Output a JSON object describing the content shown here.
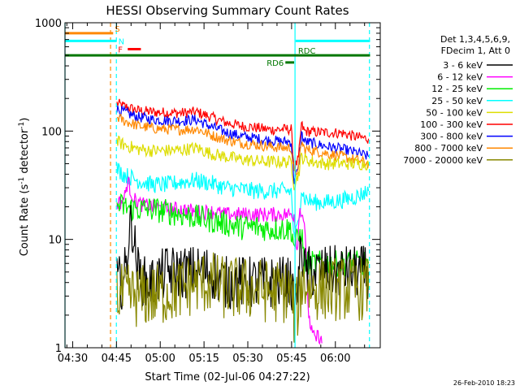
{
  "chart_data": {
    "type": "line",
    "title": "HESSI Observing Summary Count Rates",
    "xlabel": "Start Time (02-Jul-06 04:27:22)",
    "ylabel_main": "Count Rate (s",
    "ylabel_sup1": "-1",
    "ylabel_mid": " detector",
    "ylabel_sup2": "-1",
    "ylabel_end": ")",
    "x_scale": "time",
    "x_range_min": [
      0,
      108
    ],
    "x_ticks": [
      {
        "label": "04:30",
        "t": 2.63
      },
      {
        "label": "04:45",
        "t": 17.63
      },
      {
        "label": "05:00",
        "t": 32.63
      },
      {
        "label": "05:15",
        "t": 47.63
      },
      {
        "label": "05:30",
        "t": 62.63
      },
      {
        "label": "05:45",
        "t": 77.63
      },
      {
        "label": "06:00",
        "t": 92.63
      }
    ],
    "y_scale": "log",
    "ylim": [
      1,
      1000
    ],
    "y_ticks": [
      {
        "label": "1",
        "v": 1
      },
      {
        "label": "10",
        "v": 10
      },
      {
        "label": "100",
        "v": 100
      },
      {
        "label": "1000",
        "v": 1000
      }
    ],
    "legend": {
      "placement": "right",
      "header": [
        "Det 1,3,4,5,6,9,",
        "FDecim 1, Att 0"
      ],
      "entries": [
        {
          "label": "3 - 6 keV",
          "color": "#000000"
        },
        {
          "label": "6 - 12 keV",
          "color": "#ff00ff"
        },
        {
          "label": "12 - 25 keV",
          "color": "#00ee00"
        },
        {
          "label": "25 - 50 keV",
          "color": "#00ffff"
        },
        {
          "label": "50 - 100 keV",
          "color": "#dddd00"
        },
        {
          "label": "100 - 300 keV",
          "color": "#ff0000"
        },
        {
          "label": "300 - 800 keV",
          "color": "#0000ff"
        },
        {
          "label": "800 - 7000 keV",
          "color": "#ff8800"
        },
        {
          "label": "7000 - 20000 keV",
          "color": "#888800"
        }
      ]
    },
    "flags": [
      {
        "label": "S",
        "color": "#ff8800",
        "level": 800,
        "start": 0,
        "end": 16.5,
        "style": "solid"
      },
      {
        "label": "N",
        "color": "#00ffff",
        "level": 680,
        "start": 0,
        "end": 17.7,
        "style": "solid"
      },
      {
        "label": "F",
        "color": "#ff0000",
        "level": 570,
        "start": 21.5,
        "end": 26,
        "style": "solid"
      },
      {
        "label": "RD6",
        "color": "#007700",
        "level": 430,
        "start": 75.5,
        "end": 78.5,
        "style": "solid"
      },
      {
        "label": "RDC",
        "color": "#007700",
        "level": 500,
        "start": 0,
        "end": 104.5,
        "style": "solid"
      },
      {
        "label": "",
        "color": "#00ffff",
        "level": 680,
        "start": 79,
        "end": 104.5,
        "style": "solid"
      }
    ],
    "markers": [
      {
        "t": 15.6,
        "color": "#ff8800",
        "style": "dash"
      },
      {
        "t": 17.6,
        "color": "#00ffff",
        "style": "dash"
      },
      {
        "t": 78.8,
        "color": "#00ffff",
        "style": "solid"
      },
      {
        "t": 104.3,
        "color": "#00ffff",
        "style": "dash"
      },
      {
        "t": 0,
        "color": "#00ffff",
        "style": "solid"
      }
    ],
    "series": [
      {
        "name": "100 - 300 keV",
        "color": "#ff0000",
        "x": [
          17.8,
          20,
          25,
          30,
          35,
          40,
          45,
          50,
          55,
          60,
          65,
          70,
          75,
          77.5,
          78.5,
          80,
          81,
          82,
          85,
          90,
          95,
          100,
          104
        ],
        "y": [
          180,
          170,
          155,
          150,
          148,
          147,
          150,
          135,
          120,
          112,
          108,
          103,
          104,
          104,
          45,
          55,
          115,
          100,
          98,
          97,
          96,
          88,
          85
        ]
      },
      {
        "name": "300 - 800 keV",
        "color": "#0000ff",
        "x": [
          17.8,
          20,
          25,
          30,
          35,
          40,
          45,
          50,
          55,
          60,
          65,
          70,
          75,
          77.5,
          78.5,
          80,
          81,
          82,
          85,
          90,
          95,
          100,
          104
        ],
        "y": [
          160,
          150,
          135,
          128,
          125,
          125,
          127,
          110,
          98,
          90,
          86,
          82,
          80,
          80,
          35,
          45,
          95,
          80,
          77,
          72,
          68,
          63,
          58
        ]
      },
      {
        "name": "800 - 7000 keV",
        "color": "#ff8800",
        "x": [
          17.8,
          20,
          25,
          30,
          35,
          40,
          45,
          50,
          55,
          60,
          65,
          70,
          75,
          77.5,
          78.5,
          80,
          81,
          82,
          85,
          90,
          95,
          100,
          104
        ],
        "y": [
          135,
          125,
          112,
          106,
          104,
          103,
          105,
          92,
          83,
          78,
          75,
          72,
          70,
          70,
          40,
          45,
          80,
          68,
          66,
          62,
          58,
          54,
          50
        ]
      },
      {
        "name": "50 - 100 keV",
        "color": "#dddd00",
        "x": [
          17.8,
          20,
          25,
          30,
          35,
          40,
          45,
          50,
          55,
          60,
          65,
          70,
          75,
          77.5,
          78.5,
          80,
          81,
          82,
          85,
          90,
          95,
          100,
          104
        ],
        "y": [
          80,
          75,
          68,
          66,
          66,
          67,
          70,
          62,
          58,
          55,
          53,
          52,
          52,
          52,
          32,
          40,
          58,
          55,
          52,
          50,
          50,
          50,
          50
        ]
      },
      {
        "name": "25 - 50 keV",
        "color": "#00ffff",
        "x": [
          17.8,
          20,
          25,
          30,
          35,
          40,
          45,
          50,
          55,
          60,
          65,
          70,
          75,
          77.5,
          78.5,
          80,
          81,
          82,
          85,
          90,
          95,
          100,
          104
        ],
        "y": [
          45,
          40,
          35,
          32,
          32,
          34,
          35,
          33,
          30,
          29,
          28,
          28,
          28,
          28,
          10,
          14,
          30,
          24,
          22,
          22,
          23,
          25,
          28
        ]
      },
      {
        "name": "6 - 12 keV",
        "color": "#ff00ff",
        "x": [
          17.8,
          19,
          20.5,
          21.5,
          22.5,
          24,
          26,
          30,
          35,
          40,
          45,
          50,
          55,
          60,
          65,
          70,
          75,
          77.5,
          78.5,
          79.5,
          80.5,
          82,
          83.5,
          84.5,
          85.5,
          87,
          88
        ],
        "y": [
          22,
          22,
          25,
          35,
          28,
          23,
          21,
          20,
          19,
          19,
          18,
          18,
          17,
          17,
          17,
          17,
          17,
          17,
          17,
          8,
          20,
          15,
          2,
          1.4,
          1.2,
          1.3,
          1.1
        ]
      },
      {
        "name": "12 - 25 keV",
        "color": "#00ee00",
        "x": [
          17.8,
          20,
          25,
          30,
          35,
          40,
          45,
          50,
          55,
          60,
          65,
          70,
          75,
          77.5,
          78.5,
          80,
          81,
          82,
          85,
          90,
          95,
          100,
          104
        ],
        "y": [
          21,
          20,
          19,
          19,
          18,
          17,
          16,
          15,
          14,
          13,
          13,
          12.5,
          12.5,
          12.5,
          9,
          10,
          12,
          6,
          6,
          6,
          6,
          6,
          6
        ]
      },
      {
        "name": "3 - 6 keV",
        "color": "#000000",
        "x": [
          17.8,
          20,
          21,
          22,
          23,
          24,
          25,
          27,
          30,
          35,
          40,
          45,
          50,
          55,
          60,
          65,
          70,
          75,
          77.5,
          78.5,
          80,
          81,
          82,
          85,
          90,
          95,
          100,
          104
        ],
        "y": [
          4,
          4,
          6,
          12,
          14,
          8,
          5,
          4,
          4,
          5,
          5,
          5,
          5,
          4,
          4,
          4,
          4,
          4,
          4,
          2,
          4,
          10,
          5,
          5,
          5,
          5,
          5,
          5
        ]
      },
      {
        "name": "7000 - 20000 keV",
        "color": "#888800",
        "x": [
          17.8,
          20,
          25,
          30,
          35,
          40,
          45,
          50,
          55,
          60,
          65,
          70,
          75,
          77.5,
          78.5,
          80,
          81,
          82,
          85,
          90,
          95,
          100,
          104
        ],
        "y": [
          3,
          3,
          3,
          3,
          3.2,
          3.5,
          4,
          4,
          3.5,
          3.5,
          3.5,
          3.3,
          3.3,
          3.3,
          2,
          2.5,
          4,
          4,
          3.5,
          3.5,
          3.5,
          3.5,
          3.5
        ]
      }
    ],
    "noise": [
      {
        "series": "100 - 300 keV",
        "amp": 0.05
      },
      {
        "series": "300 - 800 keV",
        "amp": 0.05
      },
      {
        "series": "800 - 7000 keV",
        "amp": 0.05
      },
      {
        "series": "50 - 100 keV",
        "amp": 0.06
      },
      {
        "series": "25 - 50 keV",
        "amp": 0.08
      },
      {
        "series": "6 - 12 keV",
        "amp": 0.07
      },
      {
        "series": "12 - 25 keV",
        "amp": 0.12
      },
      {
        "series": "3 - 6 keV",
        "amp": 0.25
      },
      {
        "series": "7000 - 20000 keV",
        "amp": 0.3
      }
    ]
  },
  "footer_date": "26-Feb-2010 18:23"
}
